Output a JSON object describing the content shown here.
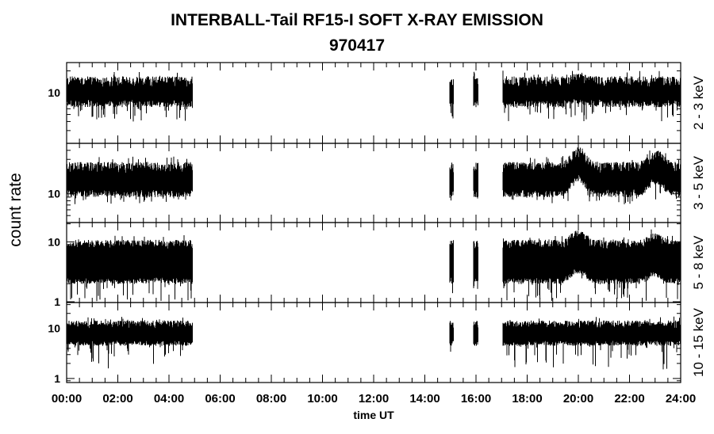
{
  "chart_data": {
    "type": "line",
    "title": "INTERBALL-Tail RF15-I SOFT X-RAY EMISSION",
    "subtitle": "970417",
    "xlabel": "time UT",
    "ylabel": "count rate",
    "x_ticks": [
      "00:00",
      "02:00",
      "04:00",
      "06:00",
      "08:00",
      "10:00",
      "12:00",
      "14:00",
      "16:00",
      "18:00",
      "20:00",
      "22:00",
      "24:00"
    ],
    "xlim_hours": [
      0,
      24
    ],
    "y_scale": "log",
    "data_coverage_hours": [
      [
        0,
        4.92
      ],
      [
        14.95,
        15.12
      ],
      [
        15.9,
        16.08
      ],
      [
        17.05,
        24
      ]
    ],
    "panels": [
      {
        "name": "2 - 3 keV",
        "ylim": [
          2,
          26
        ],
        "y_ticks": [
          {
            "value": 10,
            "label": "10"
          }
        ],
        "band_low": 7,
        "band_high": 14,
        "dip_min": 4,
        "peaks": [
          {
            "hour": 20.0,
            "factor": 1.1
          }
        ]
      },
      {
        "name": "3 - 5 keV",
        "ylim": [
          4,
          50
        ],
        "y_ticks": [
          {
            "value": 10,
            "label": "10"
          }
        ],
        "band_low": 10,
        "band_high": 23,
        "dip_min": 7,
        "peaks": [
          {
            "hour": 20.0,
            "factor": 1.6
          },
          {
            "hour": 23.05,
            "factor": 1.5
          }
        ]
      },
      {
        "name": "5 - 8 keV",
        "ylim": [
          0.97,
          21
        ],
        "y_ticks": [
          {
            "value": 1,
            "label": "1"
          },
          {
            "value": 10,
            "label": "10"
          }
        ],
        "band_low": 2.2,
        "band_high": 9,
        "dip_min": 1,
        "peaks": [
          {
            "hour": 20.0,
            "factor": 1.5
          },
          {
            "hour": 23.0,
            "factor": 1.3
          }
        ]
      },
      {
        "name": "10 - 15 keV",
        "ylim": [
          0.83,
          33
        ],
        "y_ticks": [
          {
            "value": 1,
            "label": "1"
          },
          {
            "value": 10,
            "label": "10"
          }
        ],
        "band_low": 5,
        "band_high": 12,
        "dip_min": 1.5,
        "peaks": []
      }
    ]
  }
}
